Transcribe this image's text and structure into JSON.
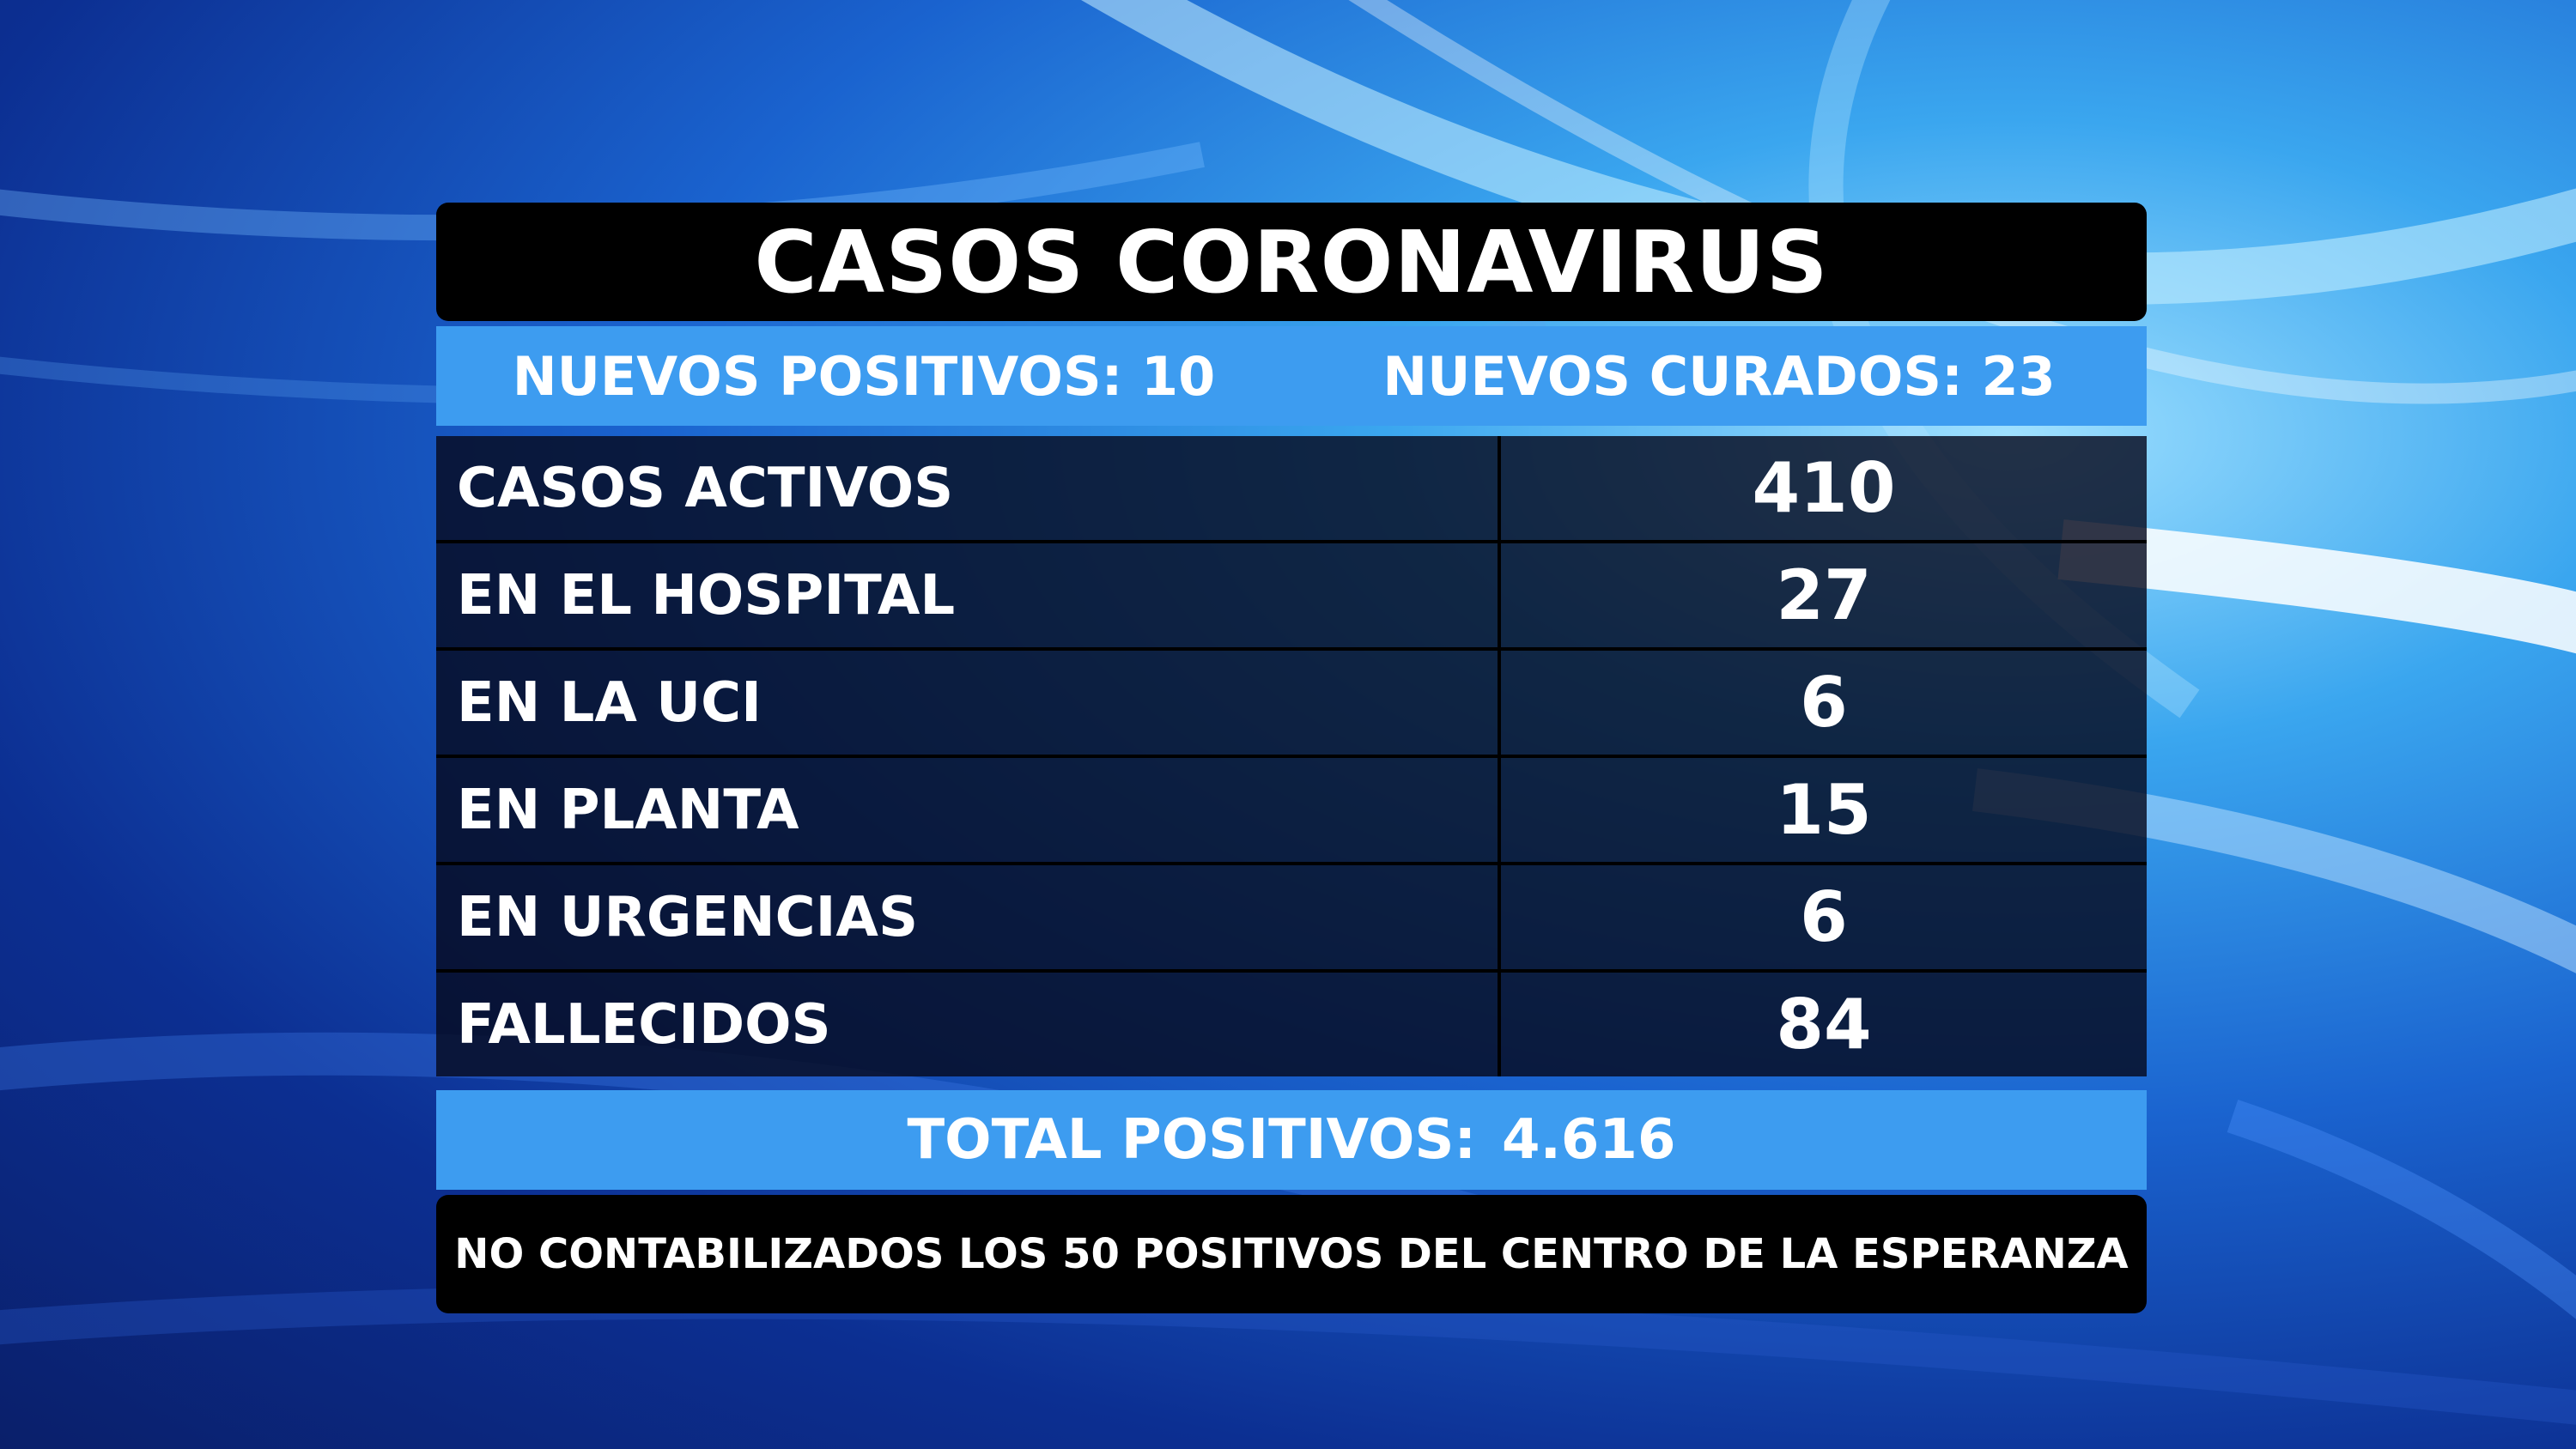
{
  "title": "CASOS CORONAVIRUS",
  "new_cases": {
    "positives_label": "NUEVOS POSITIVOS: 10",
    "cured_label": "NUEVOS CURADOS: 23"
  },
  "rows": [
    {
      "label": "CASOS ACTIVOS",
      "value": "410"
    },
    {
      "label": "EN EL HOSPITAL",
      "value": "27"
    },
    {
      "label": "EN LA UCI",
      "value": "6"
    },
    {
      "label": "EN PLANTA",
      "value": "15"
    },
    {
      "label": "EN URGENCIAS",
      "value": "6"
    },
    {
      "label": "FALLECIDOS",
      "value": "84"
    }
  ],
  "total": {
    "label": "TOTAL POSITIVOS:",
    "value": "4.616"
  },
  "note": "NO CONTABILIZADOS LOS 50 POSITIVOS DEL CENTRO DE LA ESPERANZA",
  "colors": {
    "accent_blue": "#3d9cf0",
    "bar_black": "#000000",
    "text": "#ffffff"
  }
}
